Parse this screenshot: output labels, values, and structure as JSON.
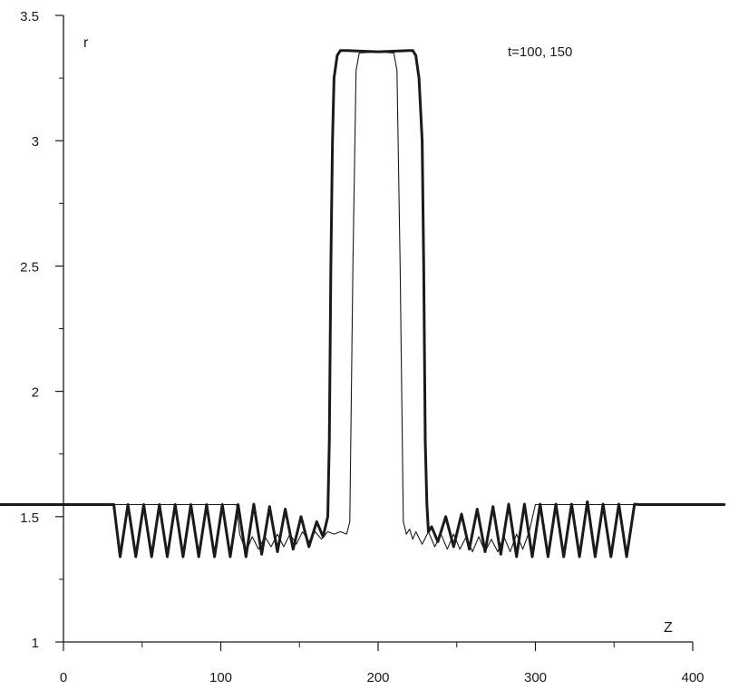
{
  "chart_data": {
    "type": "line",
    "title": "",
    "xlabel": "Z",
    "ylabel": "r",
    "annotation": "t=100, 150",
    "xlim": [
      0,
      400
    ],
    "ylim": [
      1,
      3.5
    ],
    "x_ticks": [
      0,
      100,
      200,
      300,
      400
    ],
    "x_tick_labels": [
      "0",
      "100",
      "200",
      "300",
      "400"
    ],
    "y_ticks": [
      1,
      1.5,
      2,
      2.5,
      3,
      3.5
    ],
    "y_tick_labels": [
      "1",
      "1.5",
      "2",
      "2.5",
      "3",
      "3.5"
    ],
    "grid": false,
    "legend": "none",
    "line_color": "#1a1a1a",
    "series": [
      {
        "key": "thin",
        "stroke": "thin",
        "x": [
          -40,
          110,
          112,
          116,
          120,
          124,
          128,
          132,
          136,
          140,
          144,
          148,
          152,
          156,
          160,
          164,
          168,
          172,
          176,
          180,
          182,
          184,
          186,
          188,
          200,
          210,
          212,
          214,
          216,
          218,
          220,
          222,
          224,
          228,
          232,
          236,
          240,
          244,
          248,
          252,
          256,
          260,
          264,
          268,
          272,
          276,
          280,
          284,
          288,
          292,
          296,
          300,
          310,
          420
        ],
        "y": [
          1.548,
          1.548,
          1.43,
          1.36,
          1.42,
          1.37,
          1.42,
          1.38,
          1.43,
          1.38,
          1.43,
          1.39,
          1.44,
          1.4,
          1.44,
          1.41,
          1.44,
          1.43,
          1.44,
          1.43,
          1.48,
          2.5,
          3.28,
          3.35,
          3.355,
          3.35,
          3.28,
          2.5,
          1.48,
          1.43,
          1.45,
          1.41,
          1.44,
          1.39,
          1.44,
          1.38,
          1.43,
          1.37,
          1.43,
          1.37,
          1.42,
          1.36,
          1.42,
          1.36,
          1.41,
          1.36,
          1.42,
          1.36,
          1.43,
          1.37,
          1.44,
          1.548,
          1.548,
          1.548
        ]
      },
      {
        "key": "thick",
        "stroke": "thick",
        "x": [
          -40,
          32,
          36,
          41,
          46,
          51,
          56,
          61,
          66,
          71,
          76,
          81,
          86,
          91,
          96,
          101,
          106,
          111,
          116,
          121,
          126,
          131,
          136,
          141,
          146,
          151,
          156,
          161,
          165,
          168,
          169,
          170,
          171,
          172,
          174,
          176,
          178,
          180,
          200,
          220,
          222,
          224,
          226,
          228,
          229,
          230,
          231,
          232,
          234,
          238,
          243,
          248,
          253,
          258,
          263,
          268,
          273,
          278,
          283,
          288,
          293,
          298,
          303,
          308,
          313,
          318,
          323,
          328,
          333,
          338,
          343,
          348,
          353,
          358,
          363,
          366,
          370,
          420
        ],
        "y": [
          1.548,
          1.548,
          1.34,
          1.548,
          1.34,
          1.548,
          1.34,
          1.548,
          1.34,
          1.548,
          1.34,
          1.548,
          1.34,
          1.548,
          1.34,
          1.548,
          1.34,
          1.548,
          1.34,
          1.55,
          1.35,
          1.54,
          1.36,
          1.53,
          1.37,
          1.5,
          1.38,
          1.48,
          1.42,
          1.5,
          1.8,
          2.5,
          3.0,
          3.25,
          3.34,
          3.36,
          3.36,
          3.36,
          3.355,
          3.36,
          3.36,
          3.34,
          3.25,
          3.0,
          2.5,
          1.8,
          1.55,
          1.44,
          1.46,
          1.4,
          1.5,
          1.38,
          1.51,
          1.37,
          1.53,
          1.36,
          1.54,
          1.35,
          1.55,
          1.34,
          1.55,
          1.34,
          1.55,
          1.34,
          1.55,
          1.34,
          1.55,
          1.34,
          1.56,
          1.34,
          1.55,
          1.34,
          1.55,
          1.34,
          1.55,
          1.548,
          1.548,
          1.548
        ]
      }
    ]
  }
}
